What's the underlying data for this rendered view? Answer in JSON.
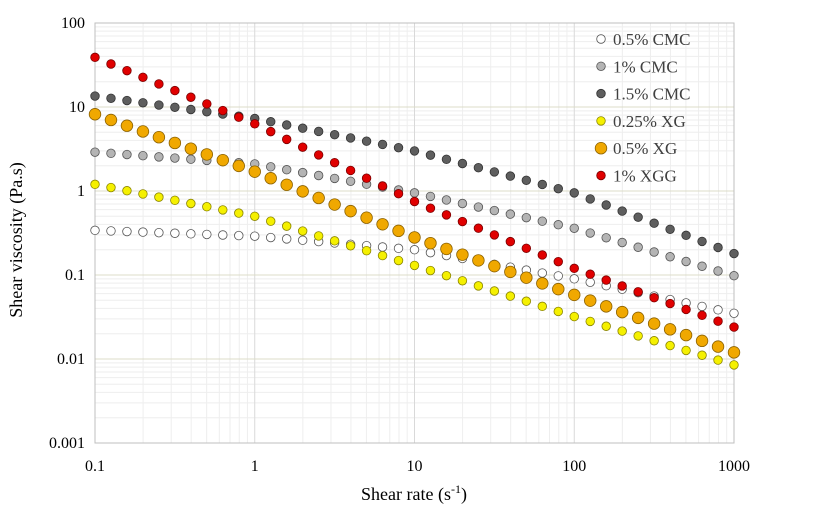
{
  "chart_data": {
    "type": "scatter",
    "title": "",
    "xlabel": "Shear rate (s",
    "xlabel_superscript": "-1",
    "xlabel_suffix": ")",
    "ylabel": "Shear viscosity (Pa.s)",
    "xscale": "log",
    "yscale": "log",
    "xlim": [
      0.1,
      1000
    ],
    "ylim": [
      0.001,
      100
    ],
    "x_ticks": [
      0.1,
      1,
      10,
      100,
      1000
    ],
    "x_tick_labels": [
      "0.1",
      "1",
      "10",
      "100",
      "1000"
    ],
    "y_ticks": [
      0.001,
      0.01,
      0.1,
      1,
      10,
      100
    ],
    "y_tick_labels": [
      "0.001",
      "0.01",
      "0.1",
      "1",
      "10",
      "100"
    ],
    "grid": true,
    "legend_position": "top-right",
    "points_per_decade": 10,
    "series": [
      {
        "name": "0.5% CMC",
        "marker": "small",
        "fill": "#ffffff",
        "stroke": "#555555",
        "anchors": [
          [
            0.1,
            0.34
          ],
          [
            1,
            0.29
          ],
          [
            10,
            0.2
          ],
          [
            100,
            0.09
          ],
          [
            1000,
            0.035
          ]
        ]
      },
      {
        "name": "1% CMC",
        "marker": "small",
        "fill": "#b4b4b4",
        "stroke": "#555555",
        "anchors": [
          [
            0.1,
            2.9
          ],
          [
            1,
            2.1
          ],
          [
            10,
            0.95
          ],
          [
            100,
            0.36
          ],
          [
            1000,
            0.098
          ]
        ]
      },
      {
        "name": "1.5% CMC",
        "marker": "small",
        "fill": "#5e5e5e",
        "stroke": "#333333",
        "anchors": [
          [
            0.1,
            13.5
          ],
          [
            1,
            7.3
          ],
          [
            10,
            3.0
          ],
          [
            100,
            0.95
          ],
          [
            1000,
            0.18
          ]
        ]
      },
      {
        "name": "0.25% XG",
        "marker": "small",
        "fill": "#f5f000",
        "stroke": "#8a8400",
        "anchors": [
          [
            0.1,
            1.2
          ],
          [
            1,
            0.5
          ],
          [
            10,
            0.13
          ],
          [
            100,
            0.032
          ],
          [
            1000,
            0.0085
          ]
        ]
      },
      {
        "name": "0.5% XG",
        "marker": "large",
        "fill": "#f0a800",
        "stroke": "#8a6000",
        "anchors": [
          [
            0.1,
            8.2
          ],
          [
            1,
            1.7
          ],
          [
            10,
            0.28
          ],
          [
            100,
            0.058
          ],
          [
            1000,
            0.012
          ]
        ]
      },
      {
        "name": "1% XGG",
        "marker": "small",
        "fill": "#e00000",
        "stroke": "#7a0000",
        "anchors": [
          [
            0.1,
            39
          ],
          [
            1,
            6.3
          ],
          [
            10,
            0.75
          ],
          [
            100,
            0.12
          ],
          [
            1000,
            0.024
          ]
        ]
      }
    ]
  }
}
